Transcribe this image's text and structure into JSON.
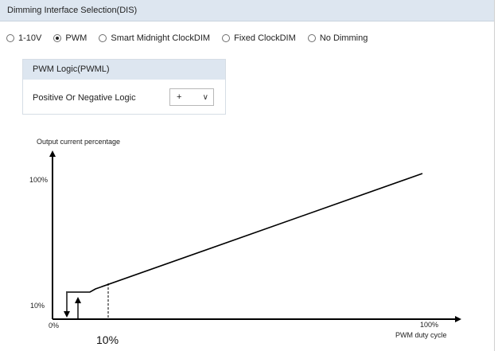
{
  "header": {
    "title": "Dimming Interface Selection(DIS)"
  },
  "options": [
    {
      "label": "1-10V",
      "selected": false
    },
    {
      "label": "PWM",
      "selected": true
    },
    {
      "label": "Smart Midnight ClockDIM",
      "selected": false
    },
    {
      "label": "Fixed ClockDIM",
      "selected": false
    },
    {
      "label": "No Dimming",
      "selected": false
    }
  ],
  "pwm": {
    "title": "PWM Logic(PWML)",
    "logic_label": "Positive Or Negative Logic",
    "logic_value": "+"
  },
  "chart": {
    "y_title": "Output current percentage",
    "y_top": "100%",
    "y_low": "10%",
    "x_origin": "0%",
    "x_end": "100%",
    "x_title": "PWM duty cycle",
    "marker": "10%"
  },
  "chart_data": {
    "type": "line",
    "title": "",
    "xlabel": "PWM duty cycle",
    "ylabel": "Output current percentage",
    "series": [
      {
        "x": [
          3,
          10,
          100
        ],
        "y": [
          10,
          10,
          100
        ]
      }
    ],
    "x_ticks": [
      "0%",
      "100%"
    ],
    "y_ticks": [
      "10%",
      "100%"
    ],
    "annotation": "10%",
    "xlim": [
      0,
      100
    ],
    "ylim": [
      0,
      100
    ]
  }
}
